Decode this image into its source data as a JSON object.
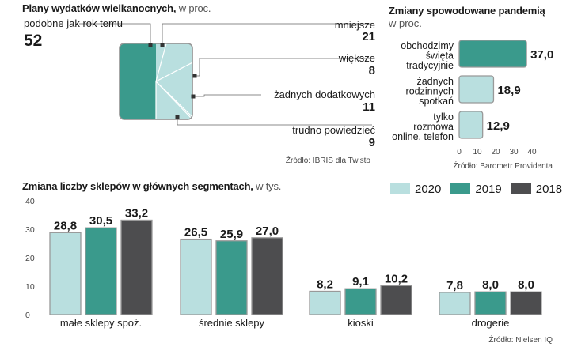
{
  "colors": {
    "c2020": "#b9dfdf",
    "c2019": "#3a9a8c",
    "c2018": "#4d4d4f",
    "edge": "#999999"
  },
  "chart_data": [
    {
      "type": "pie",
      "title": "Plany wydatków wielkanocnych,",
      "subtitle": "w proc.",
      "slices": [
        {
          "label": "podobne jak rok temu",
          "value": 52
        },
        {
          "label": "mniejsze",
          "value": 21
        },
        {
          "label": "większe",
          "value": 8
        },
        {
          "label": "żadnych dodatkowych",
          "value": 11
        },
        {
          "label": "trudno powiedzieć",
          "value": 9
        }
      ],
      "source": "Źródło: IBRIS dla Twisto"
    },
    {
      "type": "bar",
      "orientation": "horizontal",
      "title": "Zmiany spowodowane pandemią",
      "subtitle": "w proc.",
      "categories": [
        "obchodzimy święta tradycyjnie",
        "żadnych rodzinnych spotkań",
        "tylko rozmowa online, telefon"
      ],
      "category_lines": [
        [
          "obchodzimy",
          "święta",
          "tradycyjnie"
        ],
        [
          "żadnych",
          "rodzinnych",
          "spotkań"
        ],
        [
          "tylko",
          "rozmowa",
          "online, telefon"
        ]
      ],
      "values": [
        37.0,
        18.9,
        12.9
      ],
      "value_labels": [
        "37,0",
        "18,9",
        "12,9"
      ],
      "xticks": [
        "0",
        "10",
        "20",
        "30",
        "40"
      ],
      "xlim": [
        0,
        40
      ],
      "source": "Źródło: Barometr Providenta"
    },
    {
      "type": "bar",
      "title": "Zmiana liczby sklepów w głównych segmentach,",
      "subtitle": "w tys.",
      "categories": [
        "małe sklepy spoż.",
        "średnie sklepy",
        "kioski",
        "drogerie"
      ],
      "series": [
        {
          "name": "2020",
          "values": [
            28.8,
            26.5,
            8.2,
            7.8
          ],
          "labels": [
            "28,8",
            "26,5",
            "8,2",
            "7,8"
          ]
        },
        {
          "name": "2019",
          "values": [
            30.5,
            25.9,
            9.1,
            8.0
          ],
          "labels": [
            "30,5",
            "25,9",
            "9,1",
            "8,0"
          ]
        },
        {
          "name": "2018",
          "values": [
            33.2,
            27.0,
            10.2,
            8.0
          ],
          "labels": [
            "33,2",
            "27,0",
            "10,2",
            "8,0"
          ]
        }
      ],
      "yticks": [
        "40",
        "30",
        "20",
        "10",
        "0"
      ],
      "ylim": [
        0,
        40
      ],
      "legend_position": "top-right",
      "source": "Źródło: Nielsen IQ"
    }
  ]
}
